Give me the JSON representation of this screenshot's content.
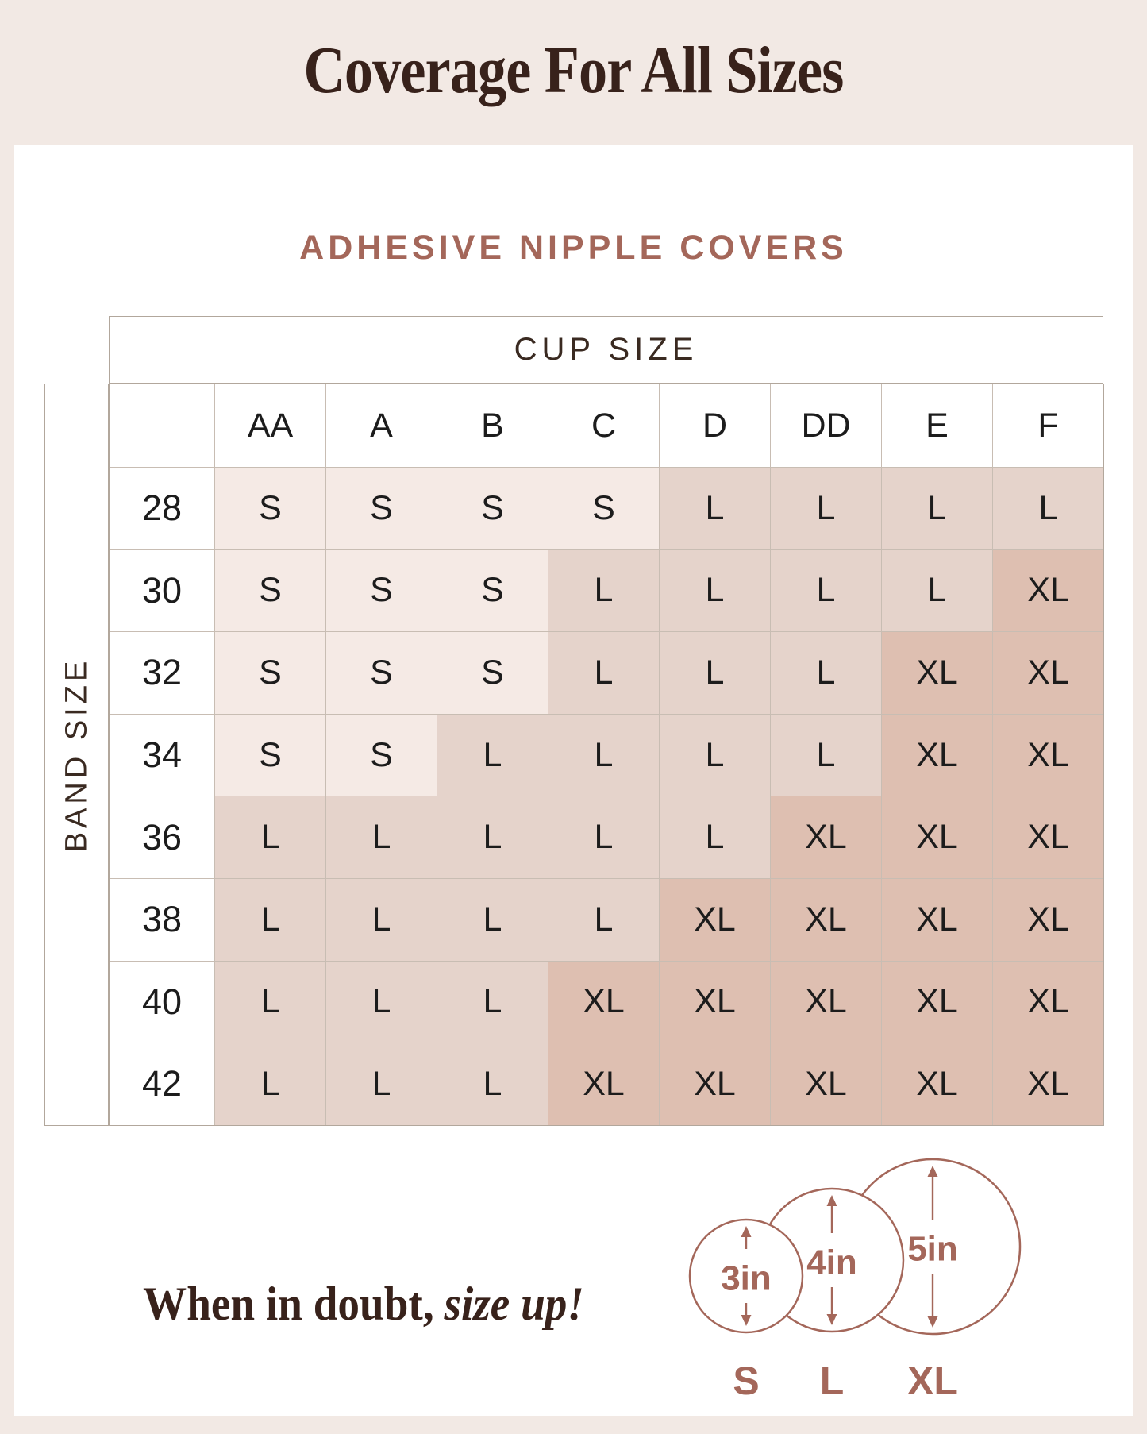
{
  "page": {
    "title": "Coverage For All Sizes",
    "background_color": "#f2e9e4",
    "panel_color": "#ffffff",
    "dark_brown": "#38221b",
    "sienna": "#a4675a",
    "grid_line": "#b2a79c"
  },
  "chart_data": {
    "type": "table",
    "title": "ADHESIVE NIPPLE COVERS",
    "column_group_label": "CUP SIZE",
    "row_group_label": "BAND SIZE",
    "columns": [
      "AA",
      "A",
      "B",
      "C",
      "D",
      "DD",
      "E",
      "F"
    ],
    "rows": [
      "28",
      "30",
      "32",
      "34",
      "36",
      "38",
      "40",
      "42"
    ],
    "values": [
      [
        "S",
        "S",
        "S",
        "S",
        "L",
        "L",
        "L",
        "L"
      ],
      [
        "S",
        "S",
        "S",
        "L",
        "L",
        "L",
        "L",
        "XL"
      ],
      [
        "S",
        "S",
        "S",
        "L",
        "L",
        "L",
        "XL",
        "XL"
      ],
      [
        "S",
        "S",
        "L",
        "L",
        "L",
        "L",
        "XL",
        "XL"
      ],
      [
        "L",
        "L",
        "L",
        "L",
        "L",
        "XL",
        "XL",
        "XL"
      ],
      [
        "L",
        "L",
        "L",
        "L",
        "XL",
        "XL",
        "XL",
        "XL"
      ],
      [
        "L",
        "L",
        "L",
        "XL",
        "XL",
        "XL",
        "XL",
        "XL"
      ],
      [
        "L",
        "L",
        "L",
        "XL",
        "XL",
        "XL",
        "XL",
        "XL"
      ]
    ],
    "cell_colors": {
      "S": "#f5eae5",
      "L": "#e5d3cb",
      "XL": "#debfb1"
    }
  },
  "footer": {
    "note_regular": "When in doubt,",
    "note_italic": "size up!",
    "legend_sizes": [
      {
        "label": "S",
        "diameter_text": "3in"
      },
      {
        "label": "L",
        "diameter_text": "4in"
      },
      {
        "label": "XL",
        "diameter_text": "5in"
      }
    ]
  }
}
